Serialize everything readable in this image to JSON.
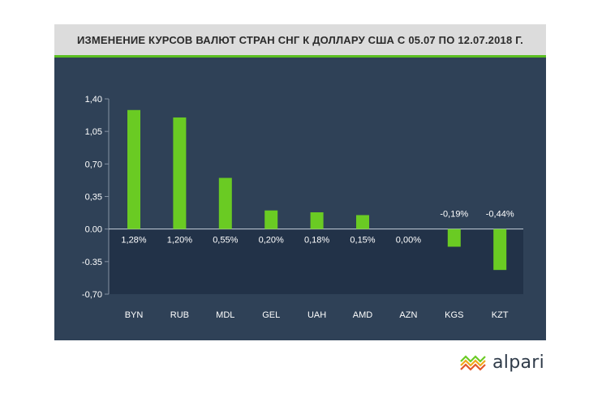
{
  "title": "ИЗМЕНЕНИЕ КУРСОВ ВАЛЮТ СТРАН СНГ К ДОЛЛАРУ США С 05.07 ПО 12.07.2018 Г.",
  "brand": {
    "name": "alpari",
    "logo_icon": "alpari-wave-icon"
  },
  "colors": {
    "panel": "#2f4157",
    "bar": "#6acb23",
    "title_bg": "#dcdcdc",
    "accent_line": "#5bbf21",
    "text": "#ffffff",
    "negative_zone": "#223248"
  },
  "chart_data": {
    "type": "bar",
    "categories": [
      "BYN",
      "RUB",
      "MDL",
      "GEL",
      "UAH",
      "AMD",
      "AZN",
      "KGS",
      "KZT"
    ],
    "values": [
      1.28,
      1.2,
      0.55,
      0.2,
      0.18,
      0.15,
      0.0,
      -0.19,
      -0.44
    ],
    "data_labels": [
      "1,28%",
      "1,20%",
      "0,55%",
      "0,20%",
      "0,18%",
      "0,15%",
      "0,00%",
      "-0,19%",
      "-0,44%"
    ],
    "y_ticks": [
      1.4,
      1.05,
      0.7,
      0.35,
      0.0,
      -0.35,
      -0.7
    ],
    "y_tick_labels": [
      "1,40",
      "1,05",
      "0,70",
      "0,35",
      "0.00",
      "-0.35",
      "-0,70"
    ],
    "ylim": [
      -0.7,
      1.4
    ],
    "xlabel": "",
    "ylabel": "",
    "grid": false,
    "legend": "none"
  }
}
